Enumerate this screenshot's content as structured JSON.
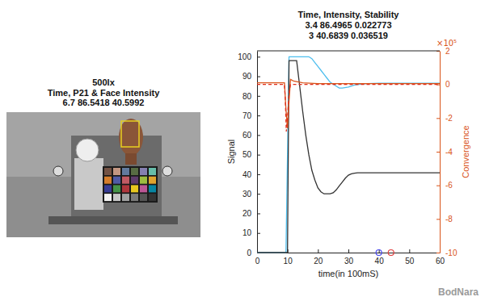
{
  "chart_data": {
    "type": "line",
    "title": "Time, Intensity, Stability",
    "subtitle": [
      "3.4 86.4965 0.022773",
      "3 40.6839 0.036519"
    ],
    "x_label": "time(in 100mS)",
    "y_label": "Signal",
    "y2_label": "Convergence",
    "annotations": [
      "×10⁵"
    ],
    "xlim": [
      0,
      60
    ],
    "xticks": [
      0,
      10,
      20,
      30,
      40,
      50,
      60
    ],
    "ylim": [
      0,
      103
    ],
    "yticks": [
      0,
      10,
      20,
      30,
      40,
      50,
      60,
      70,
      80,
      90,
      100
    ],
    "y2lim": [
      -10,
      2
    ],
    "y2ticks": [
      2,
      0,
      -2,
      -4,
      -6,
      -8,
      -10
    ],
    "grid": false,
    "series": [
      {
        "color": "#4dbeee",
        "line_style": "solid",
        "x": [
          0,
          9.5,
          10.5,
          17,
          18,
          19,
          20,
          21,
          22,
          23,
          24,
          25,
          26,
          27,
          28,
          30,
          32,
          34,
          36,
          40,
          45,
          50,
          55,
          60
        ],
        "values": [
          0,
          0,
          100,
          100,
          99,
          97,
          95,
          93,
          91,
          89,
          87,
          86,
          85,
          84,
          84,
          84.5,
          85.5,
          86,
          86.3,
          86.5,
          86.5,
          86.5,
          86.5,
          86.5
        ]
      },
      {
        "color": "#333333",
        "line_style": "solid",
        "x": [
          0,
          10,
          10.5,
          13,
          14,
          15,
          16,
          17,
          18,
          19,
          20,
          21,
          22,
          24,
          25,
          26,
          27,
          28,
          29,
          30,
          31,
          32,
          33,
          35,
          40,
          50,
          60
        ],
        "values": [
          0,
          0,
          98,
          98,
          85,
          72,
          60,
          50,
          42,
          37,
          33,
          31,
          30,
          30,
          30.5,
          32,
          34,
          36,
          38,
          39.5,
          40.2,
          40.5,
          40.7,
          40.7,
          40.7,
          40.7,
          40.7
        ]
      },
      {
        "color": "#d95319",
        "line_style": "solid",
        "axis": "y2",
        "x": [
          0,
          8,
          9,
          9.5,
          10,
          10.5,
          11,
          12,
          15,
          20,
          30,
          40,
          50,
          60
        ],
        "values": [
          0.1,
          0.1,
          0.1,
          -1.5,
          -2.6,
          -1,
          0.3,
          0.2,
          0.1,
          0.05,
          0.05,
          0.05,
          0.05,
          0.05
        ]
      },
      {
        "color": "#e0301e",
        "line_style": "dashed",
        "axis": "y2",
        "x": [
          0,
          9,
          9.3,
          9.6,
          10,
          10.5,
          11,
          12,
          60
        ],
        "values": [
          0,
          0,
          -1,
          -2.8,
          -2,
          -0.5,
          0,
          0,
          0
        ]
      },
      {
        "type": "scatter",
        "marker": "circle",
        "color": "#4a4af0",
        "x": [
          40
        ],
        "values": [
          0
        ]
      },
      {
        "type": "scatter",
        "marker": "circle",
        "color": "#e04040",
        "x": [
          44
        ],
        "values": [
          0
        ]
      }
    ]
  },
  "image_panel": {
    "title": [
      "500lx",
      "Time, P21 & Face Intensity",
      "6.7 86.5418 40.5992"
    ]
  },
  "watermark": "BodNara"
}
